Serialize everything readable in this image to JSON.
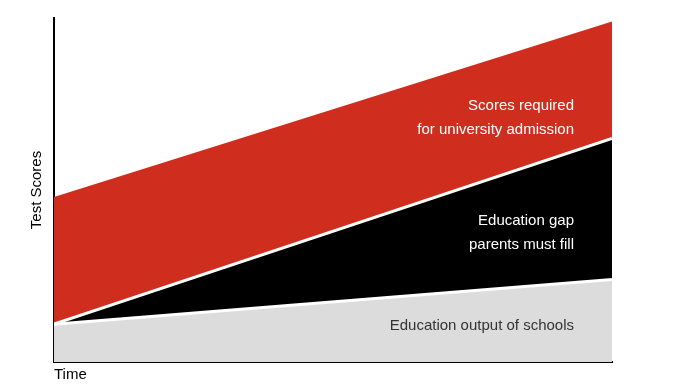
{
  "chart_data": {
    "type": "area",
    "stacked": true,
    "grid": false,
    "tick_labels": false,
    "x_label": "Time",
    "y_label": "Test Scores",
    "x": [
      0,
      100
    ],
    "xlim": [
      0,
      100
    ],
    "ylim": [
      0,
      100
    ],
    "series": [
      {
        "name": "Education output of schools",
        "color": "#dcdcdc",
        "values": [
          11,
          24
        ]
      },
      {
        "name": "Education gap\nparents must fill",
        "color": "#000000",
        "values": [
          0,
          41
        ]
      },
      {
        "name": "Scores required\nfor university admission",
        "color": "#cf2e1e",
        "values": [
          37,
          34
        ]
      }
    ]
  }
}
